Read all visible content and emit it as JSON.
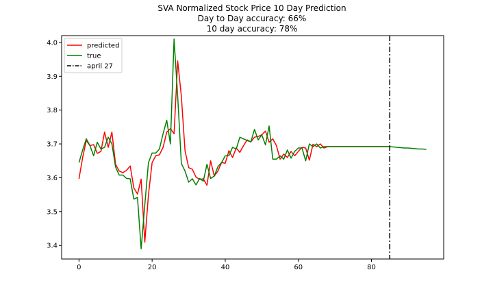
{
  "chart_data": {
    "type": "line",
    "title_lines": [
      "SVA Normalized Stock Price 10 Day Prediction",
      "Day to Day accuracy: 66%",
      "10 day accuracy: 78%"
    ],
    "xlabel": "",
    "ylabel": "",
    "xlim": [
      -4.75,
      99.75
    ],
    "ylim": [
      3.36,
      4.02
    ],
    "x_ticks": [
      0,
      20,
      40,
      60,
      80
    ],
    "y_ticks": [
      3.4,
      3.5,
      3.6,
      3.7,
      3.8,
      3.9,
      4.0
    ],
    "x_tick_labels": [
      "0",
      "20",
      "40",
      "60",
      "80"
    ],
    "y_tick_labels": [
      "3.4",
      "3.5",
      "3.6",
      "3.7",
      "3.8",
      "3.9",
      "4.0"
    ],
    "grid": false,
    "legend_position": "top-left",
    "series": [
      {
        "name": "predicted",
        "color": "#ff0000",
        "style": "solid",
        "x": [
          0,
          1,
          2,
          3,
          4,
          5,
          6,
          7,
          8,
          9,
          10,
          11,
          12,
          13,
          14,
          15,
          16,
          17,
          18,
          19,
          20,
          21,
          22,
          23,
          24,
          25,
          26,
          27,
          28,
          29,
          30,
          31,
          32,
          33,
          34,
          35,
          36,
          37,
          38,
          39,
          40,
          41,
          42,
          43,
          44,
          45,
          46,
          47,
          48,
          49,
          50,
          51,
          52,
          53,
          54,
          55,
          56,
          57,
          58,
          59,
          60,
          61,
          62,
          63,
          64,
          65,
          66,
          67,
          68,
          69,
          70,
          71,
          72,
          73,
          74,
          75,
          76,
          77,
          78,
          79,
          80,
          81,
          82,
          83,
          84,
          85
        ],
        "y": [
          3.597,
          3.66,
          3.71,
          3.695,
          3.698,
          3.672,
          3.678,
          3.735,
          3.69,
          3.735,
          3.64,
          3.62,
          3.615,
          3.622,
          3.635,
          3.57,
          3.552,
          3.596,
          3.41,
          3.55,
          3.645,
          3.665,
          3.668,
          3.69,
          3.735,
          3.745,
          3.73,
          3.945,
          3.84,
          3.68,
          3.63,
          3.625,
          3.602,
          3.595,
          3.597,
          3.578,
          3.65,
          3.605,
          3.62,
          3.645,
          3.643,
          3.68,
          3.66,
          3.688,
          3.675,
          3.695,
          3.712,
          3.706,
          3.72,
          3.722,
          3.727,
          3.738,
          3.705,
          3.715,
          3.695,
          3.655,
          3.67,
          3.66,
          3.678,
          3.665,
          3.678,
          3.69,
          3.688,
          3.652,
          3.699,
          3.692,
          3.7,
          3.688,
          3.692,
          3.692,
          3.692,
          3.692,
          3.692,
          3.692,
          3.692,
          3.692,
          3.692,
          3.692,
          3.692,
          3.692,
          3.692,
          3.692,
          3.692,
          3.692,
          3.692,
          3.692
        ]
      },
      {
        "name": "true",
        "color": "#008000",
        "style": "solid",
        "x": [
          0,
          1,
          2,
          3,
          4,
          5,
          6,
          7,
          8,
          9,
          10,
          11,
          12,
          13,
          14,
          15,
          16,
          17,
          18,
          19,
          20,
          21,
          22,
          23,
          24,
          25,
          26,
          27,
          28,
          29,
          30,
          31,
          32,
          33,
          34,
          35,
          36,
          37,
          38,
          39,
          40,
          41,
          42,
          43,
          44,
          45,
          46,
          47,
          48,
          49,
          50,
          51,
          52,
          53,
          54,
          55,
          56,
          57,
          58,
          59,
          60,
          61,
          62,
          63,
          64,
          65,
          66,
          67,
          68,
          69,
          70,
          71,
          72,
          73,
          74,
          75,
          76,
          77,
          78,
          79,
          80,
          81,
          82,
          83,
          84,
          85,
          86,
          87,
          88,
          89,
          90,
          91,
          92,
          93,
          94,
          95
        ],
        "y": [
          3.645,
          3.682,
          3.715,
          3.695,
          3.665,
          3.705,
          3.685,
          3.69,
          3.72,
          3.7,
          3.632,
          3.608,
          3.608,
          3.598,
          3.597,
          3.537,
          3.542,
          3.39,
          3.52,
          3.645,
          3.673,
          3.673,
          3.685,
          3.73,
          3.77,
          3.7,
          4.01,
          3.84,
          3.642,
          3.62,
          3.587,
          3.597,
          3.579,
          3.598,
          3.59,
          3.64,
          3.598,
          3.605,
          3.633,
          3.645,
          3.665,
          3.665,
          3.69,
          3.685,
          3.72,
          3.715,
          3.71,
          3.706,
          3.743,
          3.712,
          3.727,
          3.697,
          3.753,
          3.655,
          3.655,
          3.665,
          3.655,
          3.682,
          3.658,
          3.678,
          3.688,
          3.688,
          3.65,
          3.7,
          3.692,
          3.7,
          3.688,
          3.692,
          3.692,
          3.692,
          3.692,
          3.692,
          3.692,
          3.692,
          3.692,
          3.692,
          3.692,
          3.692,
          3.692,
          3.692,
          3.692,
          3.692,
          3.692,
          3.692,
          3.692,
          3.692,
          3.691,
          3.69,
          3.689,
          3.688,
          3.688,
          3.687,
          3.686,
          3.685,
          3.685,
          3.684
        ]
      }
    ],
    "vertical_lines": [
      {
        "name": "april 27",
        "x": 85,
        "color": "#000000",
        "style": "dashdot"
      }
    ]
  }
}
